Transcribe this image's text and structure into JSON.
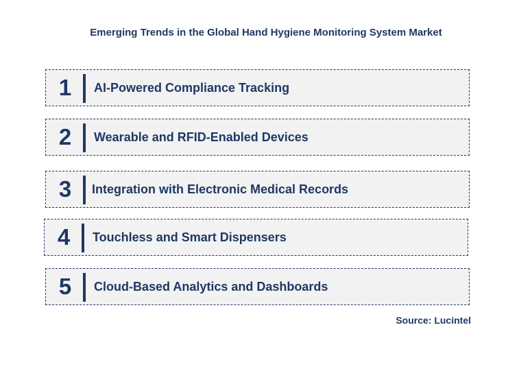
{
  "title": "Emerging Trends in the Global Hand Hygiene Monitoring System Market",
  "items": [
    {
      "number": "1",
      "label": "AI-Powered Compliance Tracking"
    },
    {
      "number": "2",
      "label": "Wearable and RFID-Enabled Devices"
    },
    {
      "number": "3",
      "label": "Integration with Electronic Medical Records"
    },
    {
      "number": "4",
      "label": "Touchless and Smart Dispensers"
    },
    {
      "number": "5",
      "label": "Cloud-Based Analytics and Dashboards"
    }
  ],
  "source": "Source: Lucintel",
  "colors": {
    "accent": "#1f3864",
    "box_fill": "#f2f2f2"
  }
}
